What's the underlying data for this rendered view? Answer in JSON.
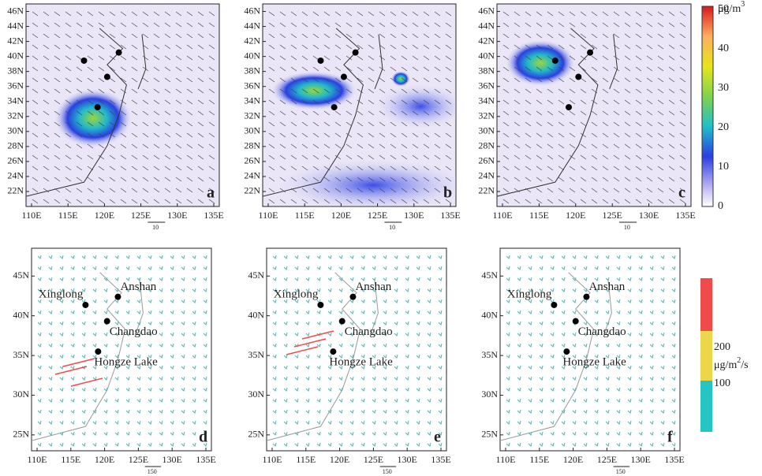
{
  "top_panels": {
    "lat_labels": [
      "22N",
      "24N",
      "26N",
      "28N",
      "30N",
      "32N",
      "34N",
      "36N",
      "38N",
      "40N",
      "42N",
      "44N",
      "46N"
    ],
    "lon_labels": [
      "110E",
      "115E",
      "120E",
      "125E",
      "130E",
      "135E"
    ],
    "panels": [
      {
        "letter": "a",
        "vector_ref": "10"
      },
      {
        "letter": "b",
        "vector_ref": "10"
      },
      {
        "letter": "c",
        "vector_ref": "10"
      }
    ]
  },
  "bottom_panels": {
    "lat_labels": [
      "25N",
      "30N",
      "35N",
      "40N",
      "45N"
    ],
    "lon_labels": [
      "110E",
      "115E",
      "120E",
      "125E",
      "130E",
      "135E"
    ],
    "panels": [
      {
        "letter": "d",
        "vector_ref": "150"
      },
      {
        "letter": "e",
        "vector_ref": "150"
      },
      {
        "letter": "f",
        "vector_ref": "150"
      }
    ],
    "stations": [
      "Xinglong",
      "Anshan",
      "Changdao",
      "Hongze Lake"
    ]
  },
  "colorbar_top": {
    "labels": [
      "50",
      "40",
      "30",
      "20",
      "10",
      "0"
    ],
    "unit_base": "μg/m",
    "unit_sup": "3"
  },
  "colorbar_bottom": {
    "labels": [
      "200",
      "100"
    ],
    "unit_base": "μg/m",
    "unit_sup": "2",
    "unit_tail": "/s"
  }
}
